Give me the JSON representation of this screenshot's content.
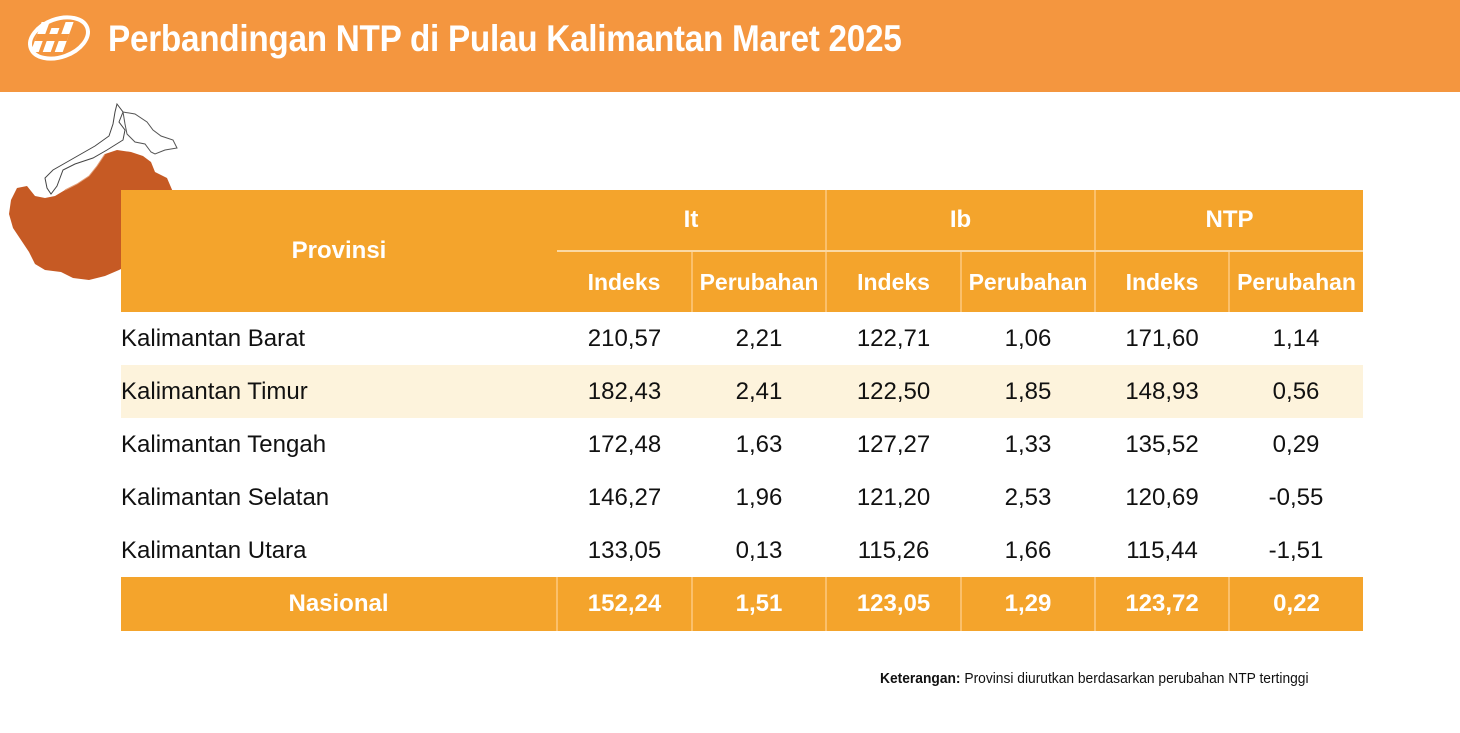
{
  "header": {
    "title": "Perbandingan NTP di Pulau Kalimantan Maret 2025",
    "background_color": "#f4963f",
    "logo_icon": "bps-logo-icon"
  },
  "map": {
    "icon": "kalimantan-map-icon",
    "highlight_color": "#c65a24"
  },
  "table": {
    "province_header": "Provinsi",
    "groups": [
      "It",
      "Ib",
      "NTP"
    ],
    "subheaders": [
      "Indeks",
      "Perubahan",
      "Indeks",
      "Perubahan",
      "Indeks",
      "Perubahan"
    ],
    "header_color": "#f4a42c",
    "rows": [
      {
        "provinsi": "Kalimantan Barat",
        "values": [
          "210,57",
          "2,21",
          "122,71",
          "1,06",
          "171,60",
          "1,14"
        ]
      },
      {
        "provinsi": "Kalimantan Timur",
        "values": [
          "182,43",
          "2,41",
          "122,50",
          "1,85",
          "148,93",
          "0,56"
        ]
      },
      {
        "provinsi": "Kalimantan Tengah",
        "values": [
          "172,48",
          "1,63",
          "127,27",
          "1,33",
          "135,52",
          "0,29"
        ]
      },
      {
        "provinsi": "Kalimantan Selatan",
        "values": [
          "146,27",
          "1,96",
          "121,20",
          "2,53",
          "120,69",
          "-0,55"
        ]
      },
      {
        "provinsi": "Kalimantan Utara",
        "values": [
          "133,05",
          "0,13",
          "115,26",
          "1,66",
          "115,44",
          "-1,51"
        ]
      }
    ],
    "total": {
      "provinsi": "Nasional",
      "values": [
        "152,24",
        "1,51",
        "123,05",
        "1,29",
        "123,72",
        "0,22"
      ]
    }
  },
  "note": {
    "label": "Keterangan:",
    "text": " Provinsi diurutkan berdasarkan perubahan NTP tertinggi"
  }
}
